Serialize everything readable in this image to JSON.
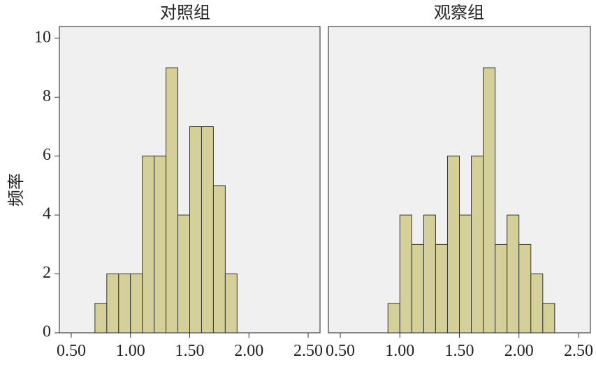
{
  "chart_data": [
    {
      "type": "bar",
      "title": "对照组",
      "ylabel": "频率",
      "xlabel": "",
      "bin_width": 0.1,
      "bin_starts": [
        0.7,
        0.8,
        0.9,
        1.0,
        1.1,
        1.2,
        1.3,
        1.4,
        1.5,
        1.6,
        1.7,
        1.8
      ],
      "values": [
        1,
        2,
        2,
        2,
        6,
        6,
        9,
        4,
        7,
        7,
        5,
        2
      ],
      "xlim": [
        0.4,
        2.6
      ],
      "ylim": [
        0,
        10.4
      ],
      "xticks": [
        "0.50",
        "1.00",
        "1.50",
        "2.00",
        "2.50"
      ],
      "yticks": [
        "0",
        "2",
        "4",
        "6",
        "8",
        "10"
      ],
      "grid": false
    },
    {
      "type": "bar",
      "title": "观察组",
      "ylabel": "频率",
      "xlabel": "",
      "bin_width": 0.1,
      "bin_starts": [
        0.9,
        1.0,
        1.1,
        1.2,
        1.3,
        1.4,
        1.5,
        1.6,
        1.7,
        1.8,
        1.9,
        2.0,
        2.1,
        2.2
      ],
      "values": [
        1,
        4,
        3,
        4,
        3,
        6,
        4,
        6,
        9,
        3,
        4,
        3,
        2,
        1
      ],
      "xlim": [
        0.4,
        2.6
      ],
      "ylim": [
        0,
        10.4
      ],
      "xticks": [
        "0.50",
        "1.00",
        "1.50",
        "2.00",
        "2.50"
      ],
      "yticks": [
        "0",
        "2",
        "4",
        "6",
        "8",
        "10"
      ],
      "grid": false
    }
  ],
  "colors": {
    "bar_fill": "#d5d09a",
    "bar_stroke": "#333333",
    "panel_background": "#f0f0f0"
  }
}
